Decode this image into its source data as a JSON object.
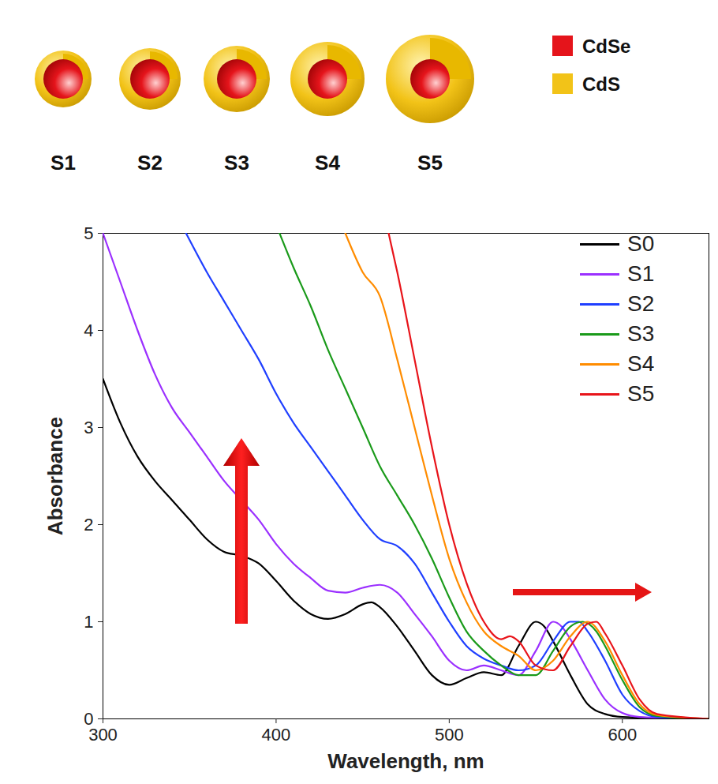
{
  "diagram": {
    "particles": [
      "S1",
      "S2",
      "S3",
      "S4",
      "S5"
    ],
    "legend": [
      {
        "name": "CdSe",
        "color": "#e5141b"
      },
      {
        "name": "CdS",
        "color": "#f2c318"
      }
    ]
  },
  "chart_data": {
    "type": "line",
    "x_label": "Wavelength, nm",
    "y_label": "Absorbance",
    "xlim": [
      300,
      650
    ],
    "xticks": [
      300,
      400,
      500,
      600
    ],
    "ylim": [
      0,
      5
    ],
    "yticks": [
      0,
      1,
      2,
      3,
      4,
      5
    ],
    "grid": false,
    "legend": "top-right",
    "series": [
      {
        "name": "S0",
        "color": "#000000",
        "x": [
          300,
          310,
          320,
          330,
          340,
          350,
          360,
          370,
          380,
          390,
          400,
          410,
          420,
          430,
          440,
          450,
          455,
          460,
          470,
          480,
          490,
          500,
          510,
          520,
          530,
          540,
          550,
          555,
          560,
          570,
          580,
          590,
          600,
          620,
          650
        ],
        "values": [
          3.5,
          3.05,
          2.7,
          2.45,
          2.25,
          2.05,
          1.85,
          1.72,
          1.68,
          1.6,
          1.42,
          1.22,
          1.08,
          1.03,
          1.08,
          1.18,
          1.2,
          1.15,
          0.95,
          0.7,
          0.45,
          0.35,
          0.42,
          0.48,
          0.45,
          0.75,
          1.0,
          0.95,
          0.8,
          0.45,
          0.15,
          0.05,
          0.02,
          0.01,
          0
        ]
      },
      {
        "name": "S1",
        "color": "#9b30ff",
        "x": [
          300,
          310,
          320,
          330,
          340,
          350,
          360,
          370,
          380,
          390,
          400,
          410,
          420,
          430,
          440,
          450,
          460,
          470,
          480,
          490,
          500,
          510,
          520,
          530,
          540,
          550,
          560,
          565,
          570,
          580,
          590,
          600,
          610,
          650
        ],
        "values": [
          5.0,
          4.5,
          4.0,
          3.55,
          3.2,
          2.95,
          2.7,
          2.45,
          2.25,
          2.05,
          1.8,
          1.6,
          1.45,
          1.32,
          1.3,
          1.35,
          1.38,
          1.3,
          1.08,
          0.85,
          0.6,
          0.5,
          0.55,
          0.5,
          0.45,
          0.7,
          1.0,
          0.95,
          0.82,
          0.5,
          0.2,
          0.06,
          0.02,
          0
        ]
      },
      {
        "name": "S2",
        "color": "#1f3fff",
        "x": [
          348,
          360,
          370,
          380,
          390,
          400,
          410,
          420,
          430,
          440,
          450,
          460,
          470,
          480,
          490,
          500,
          510,
          520,
          530,
          540,
          550,
          560,
          570,
          575,
          580,
          590,
          600,
          610,
          620,
          650
        ],
        "values": [
          5.0,
          4.6,
          4.3,
          4.0,
          3.7,
          3.35,
          3.05,
          2.8,
          2.55,
          2.3,
          2.05,
          1.85,
          1.78,
          1.6,
          1.3,
          1.0,
          0.75,
          0.62,
          0.55,
          0.5,
          0.55,
          0.8,
          1.0,
          1.0,
          0.9,
          0.6,
          0.25,
          0.08,
          0.02,
          0
        ]
      },
      {
        "name": "S3",
        "color": "#1a9a1a",
        "x": [
          402,
          410,
          420,
          430,
          440,
          450,
          460,
          470,
          480,
          490,
          500,
          510,
          520,
          530,
          540,
          550,
          560,
          570,
          577,
          585,
          590,
          600,
          610,
          620,
          650
        ],
        "values": [
          5.0,
          4.65,
          4.25,
          3.8,
          3.4,
          3.0,
          2.6,
          2.3,
          2.0,
          1.65,
          1.25,
          0.9,
          0.7,
          0.55,
          0.45,
          0.45,
          0.7,
          0.95,
          1.0,
          0.9,
          0.75,
          0.4,
          0.12,
          0.03,
          0
        ]
      },
      {
        "name": "S4",
        "color": "#ff8c00",
        "x": [
          440,
          450,
          460,
          470,
          480,
          490,
          500,
          510,
          520,
          530,
          540,
          550,
          560,
          570,
          580,
          590,
          600,
          610,
          620,
          650
        ],
        "values": [
          5.0,
          4.6,
          4.35,
          3.7,
          3.0,
          2.3,
          1.65,
          1.2,
          0.9,
          0.75,
          0.65,
          0.5,
          0.6,
          0.85,
          1.0,
          0.8,
          0.45,
          0.15,
          0.04,
          0
        ]
      },
      {
        "name": "S5",
        "color": "#e8141a",
        "x": [
          465,
          470,
          480,
          490,
          500,
          510,
          520,
          530,
          535,
          540,
          550,
          560,
          570,
          580,
          585,
          590,
          600,
          610,
          620,
          650
        ],
        "values": [
          5.0,
          4.6,
          3.7,
          2.8,
          2.0,
          1.4,
          1.0,
          0.82,
          0.85,
          0.8,
          0.55,
          0.5,
          0.75,
          0.98,
          1.0,
          0.88,
          0.55,
          0.2,
          0.05,
          0
        ]
      }
    ]
  }
}
